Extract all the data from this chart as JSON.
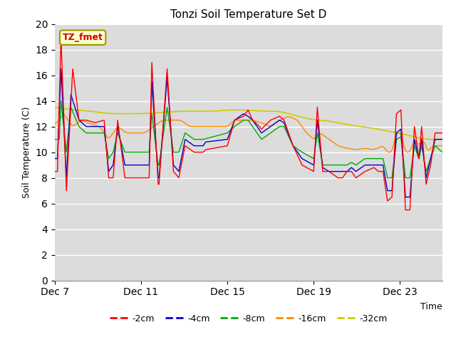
{
  "title": "Tonzi Soil Temperature Set D",
  "xlabel": "Time",
  "ylabel": "Soil Temperature (C)",
  "ylim": [
    0,
    20
  ],
  "yticks": [
    0,
    2,
    4,
    6,
    8,
    10,
    12,
    14,
    16,
    18,
    20
  ],
  "xtick_labels": [
    "Dec 7",
    "Dec 11",
    "Dec 15",
    "Dec 19",
    "Dec 23"
  ],
  "xtick_positions": [
    0,
    96,
    192,
    288,
    384
  ],
  "total_points": 432,
  "annotation_text": "TZ_fmet",
  "annotation_box_color": "#ffffcc",
  "annotation_border_color": "#999900",
  "annotation_text_color": "#cc0000",
  "bg_color": "#dcdcdc",
  "line_colors": {
    "-2cm": "#ff0000",
    "-4cm": "#0000cc",
    "-8cm": "#00aa00",
    "-16cm": "#ff8800",
    "-32cm": "#cccc00"
  },
  "legend_labels": [
    "-2cm",
    "-4cm",
    "-8cm",
    "-16cm",
    "-32cm"
  ],
  "fig_width": 6.4,
  "fig_height": 4.8,
  "dpi": 100
}
